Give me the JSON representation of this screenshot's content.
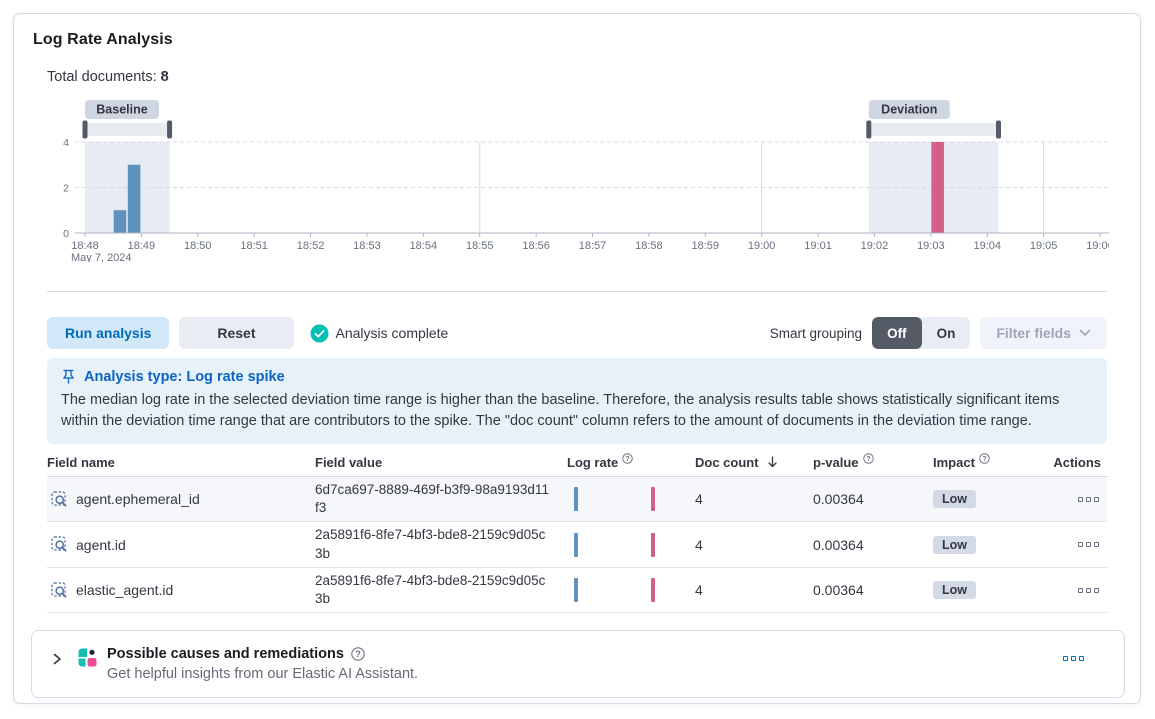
{
  "panel": {
    "title": "Log Rate Analysis",
    "total_documents_label": "Total documents:",
    "total_documents_value": "8"
  },
  "chart_data": {
    "type": "bar",
    "description": "Document count histogram with baseline and deviation brush selections",
    "x_ticks": [
      "18:48",
      "18:49",
      "18:50",
      "18:51",
      "18:52",
      "18:53",
      "18:54",
      "18:55",
      "18:56",
      "18:57",
      "18:58",
      "18:59",
      "19:00",
      "19:01",
      "19:02",
      "19:03",
      "19:04",
      "19:05",
      "19:06"
    ],
    "x_axis_date_label": "May 7, 2024",
    "y_ticks": [
      0,
      2,
      4
    ],
    "ylim": [
      0,
      4
    ],
    "bucket_width_min": 0.25,
    "five_min_gridlines_min": [
      7,
      12,
      17
    ],
    "baseline": {
      "label": "Baseline",
      "range_min": [
        0,
        1.5
      ],
      "color": "#6092C0",
      "bars": [
        {
          "start_min": 0.5,
          "doc_count": 1
        },
        {
          "start_min": 0.75,
          "doc_count": 3
        }
      ]
    },
    "deviation": {
      "label": "Deviation",
      "range_min": [
        13.9,
        16.2
      ],
      "color": "#D36086",
      "bars": [
        {
          "start_min": 15.0,
          "doc_count": 4
        }
      ]
    },
    "legend": "off"
  },
  "controls": {
    "run_label": "Run analysis",
    "reset_label": "Reset",
    "status_label": "Analysis complete",
    "smart_grouping_label": "Smart grouping",
    "off_label": "Off",
    "on_label": "On",
    "filter_fields_label": "Filter fields"
  },
  "callout": {
    "title": "Analysis type: Log rate spike",
    "body": "The median log rate in the selected deviation time range is higher than the baseline. Therefore, the analysis results table shows statistically significant items within the deviation time range that are contributors to the spike. The \"doc count\" column refers to the amount of documents in the deviation time range."
  },
  "table": {
    "columns": [
      "Field name",
      "Field value",
      "Log rate",
      "Doc count",
      "p-value",
      "Impact",
      "Actions"
    ],
    "sorted_column": "Doc count",
    "sort_direction": "descending",
    "rows": [
      {
        "field_name": "agent.ephemeral_id",
        "field_value": "6d7ca697-8889-469f-b3f9-98a9193d11f3",
        "doc_count": "4",
        "p_value": "0.00364",
        "impact": "Low"
      },
      {
        "field_name": "agent.id",
        "field_value": "2a5891f6-8fe7-4bf3-bde8-2159c9d05c3b",
        "doc_count": "4",
        "p_value": "0.00364",
        "impact": "Low"
      },
      {
        "field_name": "elastic_agent.id",
        "field_value": "2a5891f6-8fe7-4bf3-bde8-2159c9d05c3b",
        "doc_count": "4",
        "p_value": "0.00364",
        "impact": "Low"
      }
    ]
  },
  "insights_panel": {
    "title": "Possible causes and remediations",
    "subtitle": "Get helpful insights from our Elastic AI Assistant."
  },
  "icons": {
    "status_icon": "check-in-circle",
    "callout_icon": "pushpin",
    "column_help_icon": "question-in-circle",
    "sort_icon": "arrow-down",
    "field_icon": "field-search",
    "row_actions_icon": "boxes-horizontal",
    "accordion_icon": "chevron-right",
    "assistant_icon": "elastic-ai-assistant-logo"
  },
  "colors": {
    "baseline_bar": "#6092C0",
    "deviation_bar": "#D36086",
    "brush_region": "#E7EBF4",
    "brush_track": "#E8EBF0",
    "brush_handle": "#535A68",
    "badge_bg": "#CFD6E2",
    "gridline": "#D3DAE6",
    "axis": "#AEB5C2",
    "axis_text": "#69707D",
    "success": "#00BFB3",
    "primary": "#006BB8"
  }
}
